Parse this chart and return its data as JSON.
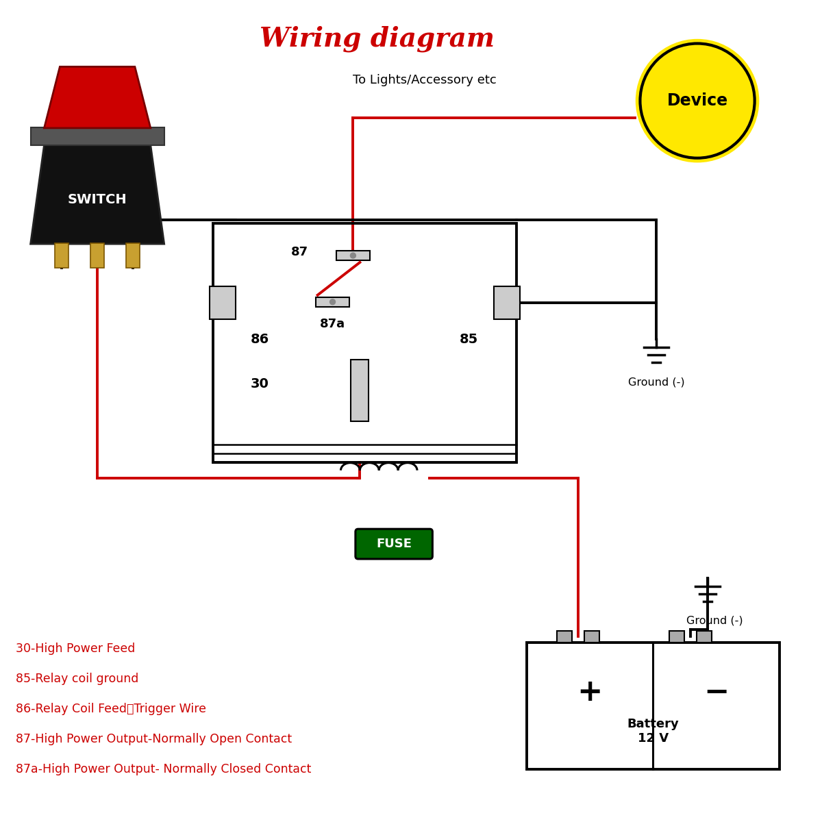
{
  "title": "Wiring diagram",
  "title_color": "#CC0000",
  "bg_color": "#FFFFFF",
  "red_wire_color": "#CC0000",
  "black_wire_color": "#000000",
  "legend_lines": [
    "30-High Power Feed",
    "85-Relay coil ground",
    "86-Relay Coil Feed（Trigger Wire",
    "87-High Power Output-Normally Open Contact",
    "87a-High Power Output- Normally Closed Contact"
  ],
  "device_label": "Device",
  "switch_label": "SWITCH",
  "fuse_label": "FUSE",
  "battery_label": "Battery\n12 V",
  "ground_label": "Ground (-)",
  "lights_label": "To Lights/Accessory etc"
}
